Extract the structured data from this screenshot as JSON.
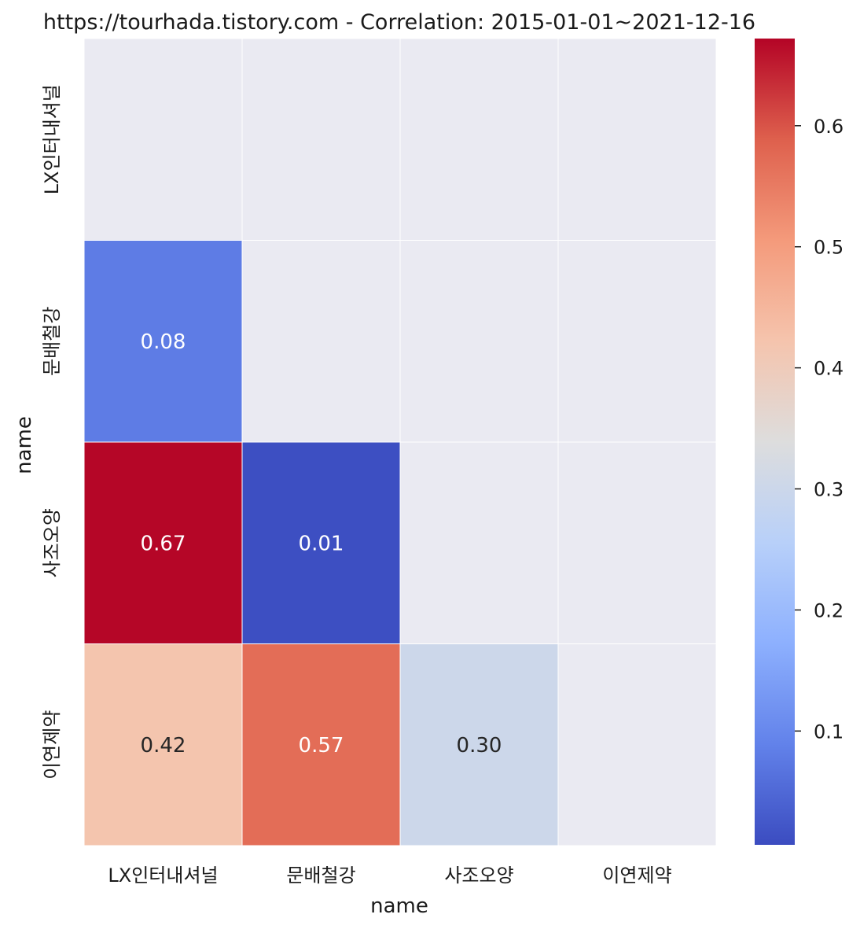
{
  "chart_data": {
    "type": "heatmap",
    "title": "https://tourhada.tistory.com - Correlation: 2015-01-01~2021-12-16",
    "xlabel": "name",
    "ylabel": "name",
    "x_categories": [
      "LX인터내셔널",
      "문배철강",
      "사조오양",
      "이연제약"
    ],
    "y_categories": [
      "LX인터내셔널",
      "문배철강",
      "사조오양",
      "이연제약"
    ],
    "matrix": [
      [
        null,
        null,
        null,
        null
      ],
      [
        0.08,
        null,
        null,
        null
      ],
      [
        0.67,
        0.01,
        null,
        null
      ],
      [
        0.42,
        0.57,
        0.3,
        null
      ]
    ],
    "value_format": "0.00",
    "masked_upper_triangle": true,
    "colormap": "coolwarm",
    "mask_color": "#eaeaf2",
    "grid_line_color": "#ffffff",
    "colorbar": {
      "min": 0.006,
      "max": 0.672,
      "ticks": [
        0.1,
        0.2,
        0.3,
        0.4,
        0.5,
        0.6
      ],
      "tick_labels": [
        "0.1",
        "0.2",
        "0.3",
        "0.4",
        "0.5",
        "0.6"
      ],
      "placement": "right"
    }
  }
}
